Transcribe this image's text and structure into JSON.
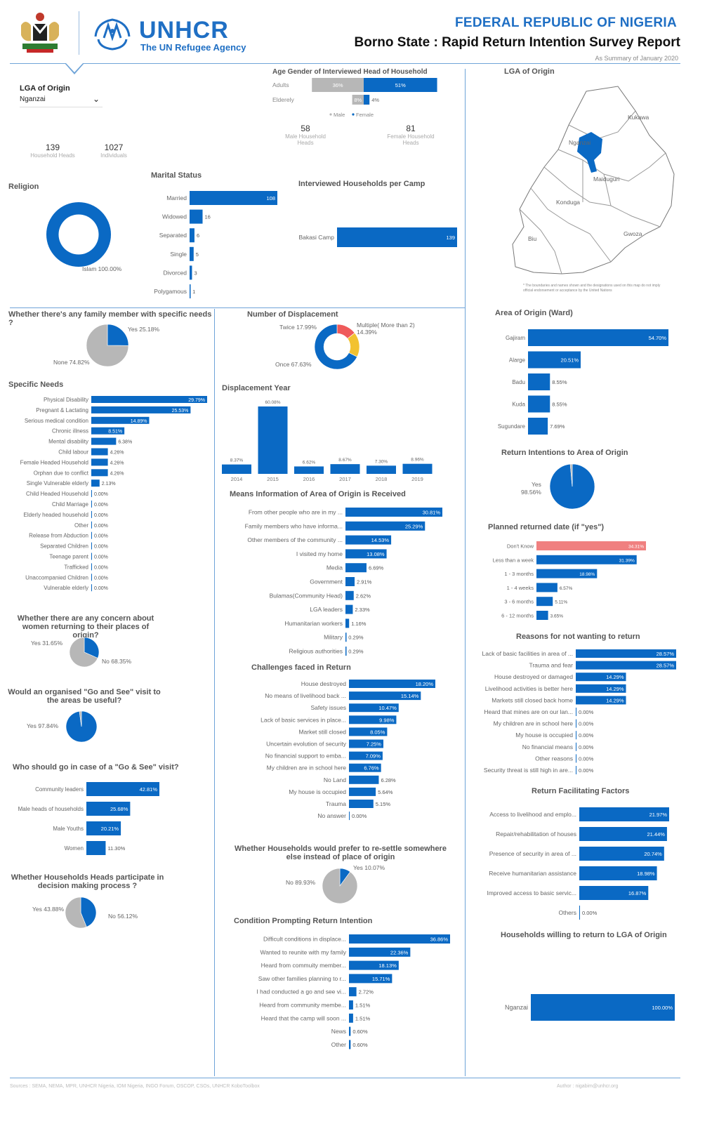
{
  "header": {
    "org": "UNHCR",
    "org_sub": "The UN Refugee Agency",
    "title": "FEDERAL REPUBLIC OF NIGERIA",
    "subtitle": "Borno State : Rapid Return Intention Survey Report",
    "date_note": "As Summary of January 2020"
  },
  "filter": {
    "label": "LGA of Origin",
    "value": "Nganzai"
  },
  "kpis": {
    "household_heads": {
      "value": "139",
      "label": "Household Heads"
    },
    "individuals": {
      "value": "1027",
      "label": "Individuals"
    },
    "male_heads": {
      "value": "58",
      "label": "Male Household Heads"
    },
    "female_heads": {
      "value": "81",
      "label": "Female Household Heads"
    }
  },
  "map": {
    "title": "LGA of Origin",
    "places": [
      "Kukawa",
      "Nganzai",
      "Maiduguri",
      "Konduga",
      "Biu",
      "Gwoza"
    ],
    "disclaimer": "* The boundaries and names shown and the designations used on this map do not imply official endorsement or acceptance by the United Nations"
  },
  "footer": {
    "sources": "Sources : SEMA, NEMA, MPR, UNHCR Nigeria, IOM Nigeria, INGO Forum, OSCOP, CSOs, UNHCR KoboToolbox",
    "author": "Author : nigabim@unhcr.org"
  },
  "colors": {
    "blue": "#0a69c4",
    "grey": "#b7b7b7",
    "yellow": "#f2c230",
    "red": "#ef5a5a",
    "salmon": "#f08080"
  },
  "chart_data": [
    {
      "id": "age_gender",
      "type": "bar",
      "title": "Age Gender of Interviewed Head of Household",
      "categories": [
        "Adults",
        "Elderely"
      ],
      "series": [
        {
          "name": "Male",
          "values": [
            36,
            8
          ],
          "labels": [
            "36%",
            "8%"
          ]
        },
        {
          "name": "Female",
          "values": [
            51,
            4
          ],
          "labels": [
            "51%",
            "4%"
          ]
        }
      ]
    },
    {
      "id": "religion",
      "type": "pie",
      "title": "Religion",
      "categories": [
        "Islam"
      ],
      "values": [
        100
      ],
      "labels": [
        "Islam 100.00%"
      ]
    },
    {
      "id": "marital",
      "type": "bar",
      "title": "Marital Status",
      "categories": [
        "Married",
        "Widowed",
        "Separated",
        "Single",
        "Divorced",
        "Polygamous"
      ],
      "values": [
        108,
        16,
        6,
        5,
        3,
        1
      ],
      "labels": [
        "108",
        "16",
        "6",
        "5",
        "3",
        "1"
      ]
    },
    {
      "id": "camp",
      "type": "bar",
      "title": "Interviewed Households per Camp",
      "categories": [
        "Bakasi Camp"
      ],
      "values": [
        139
      ],
      "labels": [
        "139"
      ]
    },
    {
      "id": "specific_needs_yes",
      "type": "pie",
      "title": "Whether there's any family member with specific needs ?",
      "categories": [
        "Yes",
        "None"
      ],
      "values": [
        25.18,
        74.82
      ],
      "labels": [
        "Yes 25.18%",
        "None 74.82%"
      ]
    },
    {
      "id": "specific_needs",
      "type": "bar",
      "title": "Specific Needs",
      "categories": [
        "Physical Disability",
        "Pregnant & Lactating",
        "Serious medical condition",
        "Chronic illness",
        "Mental disability",
        "Child labour",
        "Female Headed Household",
        "Orphan due to conflict",
        "Single Vulnerable elderly",
        "Child Headed Household",
        "Child Marriage",
        "Elderly headed household",
        "Other",
        "Release from Abduction",
        "Separated Children",
        "Teenage parent",
        "Trafficked",
        "Unaccompanied Children",
        "Vulnerable elderly"
      ],
      "values": [
        29.79,
        25.53,
        14.89,
        8.51,
        6.38,
        4.26,
        4.26,
        4.26,
        2.13,
        0,
        0,
        0,
        0,
        0,
        0,
        0,
        0,
        0,
        0
      ],
      "labels": [
        "29.79%",
        "25.53%",
        "14.89%",
        "8.51%",
        "6.38%",
        "4.26%",
        "4.26%",
        "4.26%",
        "2.13%",
        "0.00%",
        "0.00%",
        "0.00%",
        "0.00%",
        "0.00%",
        "0.00%",
        "0.00%",
        "0.00%",
        "0.00%",
        "0.00%"
      ]
    },
    {
      "id": "concern_women",
      "type": "pie",
      "title": "Whether there are any concern about women returning to their places of origin?",
      "categories": [
        "Yes",
        "No"
      ],
      "values": [
        31.65,
        68.35
      ],
      "labels": [
        "Yes 31.65%",
        "No 68.35%"
      ]
    },
    {
      "id": "go_see_useful",
      "type": "pie",
      "title": "Would an organised \"Go and See\" visit to the areas be useful?",
      "categories": [
        "Yes",
        "No"
      ],
      "values": [
        97.84,
        2.16
      ],
      "labels": [
        "Yes 97.84%",
        ""
      ]
    },
    {
      "id": "who_go_see",
      "type": "bar",
      "title": "Who should go in case of a \"Go & See\" visit?",
      "categories": [
        "Community leaders",
        "Male heads of households",
        "Male Youths",
        "Women"
      ],
      "values": [
        42.81,
        25.68,
        20.21,
        11.3
      ],
      "labels": [
        "42.81%",
        "25.68%",
        "20.21%",
        "11.30%"
      ]
    },
    {
      "id": "decision",
      "type": "pie",
      "title": "Whether Households Heads participate in decision making process ?",
      "categories": [
        "Yes",
        "No"
      ],
      "values": [
        43.88,
        56.12
      ],
      "labels": [
        "Yes 43.88%",
        "No 56.12%"
      ]
    },
    {
      "id": "displacement_num",
      "type": "pie",
      "title": "Number of Displacement",
      "categories": [
        "Once",
        "Twice",
        "Multiple( More than 2)"
      ],
      "values": [
        67.63,
        17.99,
        14.39
      ],
      "labels": [
        "Once 67.63%",
        "Twice 17.99%",
        "Multiple( More than 2) 14.39%"
      ]
    },
    {
      "id": "displacement_year",
      "type": "bar",
      "title": "Displacement Year",
      "categories": [
        "2014",
        "2015",
        "2016",
        "2017",
        "2018",
        "2019"
      ],
      "values": [
        8.37,
        60.08,
        6.62,
        8.67,
        7.3,
        8.96
      ],
      "labels": [
        "8.37%",
        "60.08%",
        "6.62%",
        "8.67%",
        "7.30%",
        "8.96%"
      ]
    },
    {
      "id": "means_info",
      "type": "bar",
      "title": "Means Information of Area of Origin is Received",
      "categories": [
        "From other people who are in my ...",
        "Family members who have informa...",
        "Other members of the community ...",
        "I visited my home",
        "Media",
        "Government",
        "Bulamas(Community Head)",
        "LGA leaders",
        "Humanitarian workers",
        "Military",
        "Religious authorities"
      ],
      "values": [
        30.81,
        25.29,
        14.53,
        13.08,
        6.69,
        2.91,
        2.62,
        2.33,
        1.16,
        0.29,
        0.29
      ],
      "labels": [
        "30.81%",
        "25.29%",
        "14.53%",
        "13.08%",
        "6.69%",
        "2.91%",
        "2.62%",
        "2.33%",
        "1.16%",
        "0.29%",
        "0.29%"
      ]
    },
    {
      "id": "challenges",
      "type": "bar",
      "title": "Challenges faced in Return",
      "categories": [
        "House destroyed",
        "No means of livelihood back ...",
        "Safety issues",
        "Lack of basic services in place...",
        "Market still closed",
        "Uncertain evolution of security",
        "No financial support to emba...",
        "My children are in school here",
        "No Land",
        "My house is occupied",
        "Trauma",
        "No answer"
      ],
      "values": [
        18.2,
        15.14,
        10.47,
        9.98,
        8.05,
        7.25,
        7.09,
        6.76,
        6.28,
        5.64,
        5.15,
        0
      ],
      "labels": [
        "18.20%",
        "15.14%",
        "10.47%",
        "9.98%",
        "8.05%",
        "7.25%",
        "7.09%",
        "6.76%",
        "6.28%",
        "5.64%",
        "5.15%",
        "0.00%"
      ]
    },
    {
      "id": "resettle",
      "type": "pie",
      "title": "Whether Households would prefer to re-settle somewhere else instead of place of origin",
      "categories": [
        "Yes",
        "No"
      ],
      "values": [
        10.07,
        89.93
      ],
      "labels": [
        "Yes 10.07%",
        "No 89.93%"
      ]
    },
    {
      "id": "condition",
      "type": "bar",
      "title": "Condition Prompting Return Intention",
      "categories": [
        "Difficult conditions in displace...",
        "Wanted to reunite with my family",
        "Heard from commuity member...",
        "Saw other families planning to r...",
        "I had conducted a go and see vi...",
        "Heard from community membe...",
        "Heard that the camp will soon ...",
        "News",
        "Other"
      ],
      "values": [
        36.86,
        22.36,
        18.13,
        15.71,
        2.72,
        1.51,
        1.51,
        0.6,
        0.6
      ],
      "labels": [
        "36.86%",
        "22.36%",
        "18.13%",
        "15.71%",
        "2.72%",
        "1.51%",
        "1.51%",
        "0.60%",
        "0.60%"
      ]
    },
    {
      "id": "ward",
      "type": "bar",
      "title": "Area of Origin (Ward)",
      "categories": [
        "Gajiram",
        "Alarge",
        "Badu",
        "Kuda",
        "Sugundare"
      ],
      "values": [
        54.7,
        20.51,
        8.55,
        8.55,
        7.69
      ],
      "labels": [
        "54.70%",
        "20.51%",
        "8.55%",
        "8.55%",
        "7.69%"
      ]
    },
    {
      "id": "return_intent",
      "type": "pie",
      "title": "Return Intentions to Area of Origin",
      "categories": [
        "Yes",
        "No"
      ],
      "values": [
        98.56,
        1.44
      ],
      "labels": [
        "Yes 98.56%",
        ""
      ]
    },
    {
      "id": "planned_date",
      "type": "bar",
      "title": "Planned returned date (if \"yes\")",
      "categories": [
        "Don't Know",
        "Less than a week",
        "1 - 3 months",
        "1 - 4 weeks",
        "3 - 6 months",
        "6 - 12 months"
      ],
      "values": [
        34.31,
        31.39,
        18.98,
        6.57,
        5.11,
        3.65
      ],
      "labels": [
        "34.31%",
        "31.39%",
        "18.98%",
        "6.57%",
        "5.11%",
        "3.65%"
      ]
    },
    {
      "id": "reasons_not",
      "type": "bar",
      "title": "Reasons for not wanting to return",
      "categories": [
        "Lack of basic facilities in area of ...",
        "Trauma and fear",
        "House destroyed or damaged",
        "Livelihood activities is better here",
        "Markets still closed back home",
        "Heard that mines are on our lan...",
        "My children are in school here",
        "My house is occupied",
        "No financial means",
        "Other reasons",
        "Security threat is still high in are..."
      ],
      "values": [
        28.57,
        28.57,
        14.29,
        14.29,
        14.29,
        0,
        0,
        0,
        0,
        0,
        0
      ],
      "labels": [
        "28.57%",
        "28.57%",
        "14.29%",
        "14.29%",
        "14.29%",
        "0.00%",
        "0.00%",
        "0.00%",
        "0.00%",
        "0.00%",
        "0.00%"
      ]
    },
    {
      "id": "facilitating",
      "type": "bar",
      "title": "Return Facilitating Factors",
      "categories": [
        "Access to livelihood and emplo...",
        "Repair/rehabilitation of houses",
        "Presence of security in area of ...",
        "Receive humanitarian assistance",
        "Improved access to basic servic...",
        "Others"
      ],
      "values": [
        21.97,
        21.44,
        20.74,
        18.98,
        16.87,
        0
      ],
      "labels": [
        "21.97%",
        "21.44%",
        "20.74%",
        "18.98%",
        "16.87%",
        "0.00%"
      ]
    },
    {
      "id": "willing_lga",
      "type": "bar",
      "title": "Households willing to return to LGA of Origin",
      "categories": [
        "Nganzai"
      ],
      "values": [
        100
      ],
      "labels": [
        "100.00%"
      ]
    }
  ]
}
